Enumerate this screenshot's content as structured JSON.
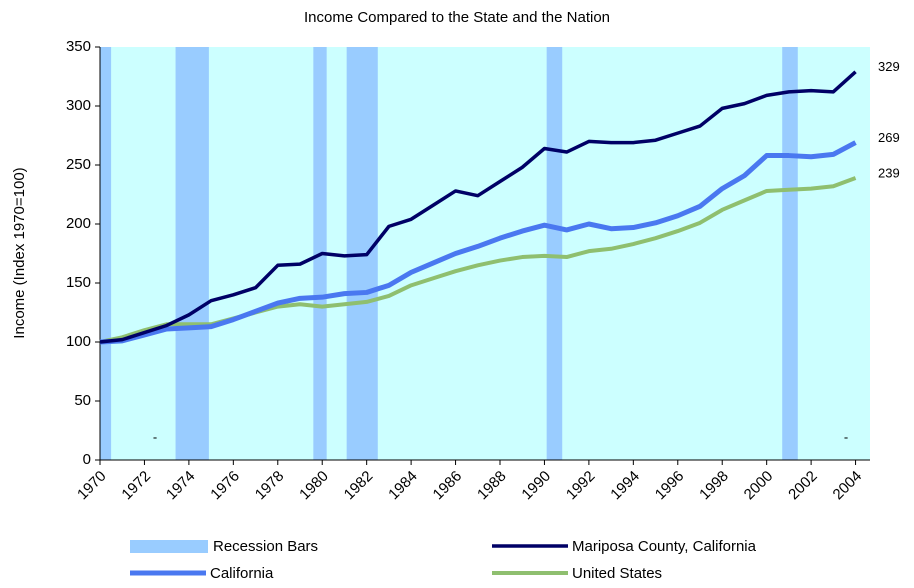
{
  "chart_data": {
    "type": "line",
    "title": "Income Compared to the State and the Nation",
    "y_label": "Income (Index 1970=100)",
    "x": [
      1970,
      1971,
      1972,
      1973,
      1974,
      1975,
      1976,
      1977,
      1978,
      1979,
      1980,
      1981,
      1982,
      1983,
      1984,
      1985,
      1986,
      1987,
      1988,
      1989,
      1990,
      1991,
      1992,
      1993,
      1994,
      1995,
      1996,
      1997,
      1998,
      1999,
      2000,
      2001,
      2002,
      2003,
      2004
    ],
    "series": [
      {
        "name": "Mariposa County, California",
        "color": "#000066",
        "width": 3.5,
        "values": [
          100,
          102,
          108,
          114,
          123,
          135,
          140,
          146,
          165,
          166,
          175,
          173,
          174,
          198,
          204,
          216,
          228,
          224,
          236,
          248,
          264,
          261,
          270,
          269,
          269,
          271,
          277,
          283,
          298,
          302,
          309,
          312,
          313,
          312,
          329
        ]
      },
      {
        "name": "California",
        "color": "#4a78f0",
        "width": 5,
        "values": [
          100,
          101,
          106,
          111,
          112,
          113,
          119,
          126,
          133,
          137,
          138,
          141,
          142,
          148,
          159,
          167,
          175,
          181,
          188,
          194,
          199,
          195,
          200,
          196,
          197,
          201,
          207,
          215,
          230,
          241,
          258,
          258,
          257,
          259,
          269
        ]
      },
      {
        "name": "United States",
        "color": "#8fbf6f",
        "width": 4,
        "values": [
          100,
          104,
          110,
          115,
          115,
          115,
          120,
          125,
          130,
          132,
          130,
          132,
          134,
          139,
          148,
          154,
          160,
          165,
          169,
          172,
          173,
          172,
          177,
          179,
          183,
          188,
          194,
          201,
          212,
          220,
          228,
          229,
          230,
          232,
          239
        ]
      }
    ],
    "recession_name": "Recession Bars",
    "recession_color": "#99ccff",
    "recessions": [
      [
        1970,
        1970.5
      ],
      [
        1973.4,
        1974.9
      ],
      [
        1979.6,
        1980.2
      ],
      [
        1981.1,
        1982.5
      ],
      [
        1990.1,
        1990.8
      ],
      [
        2000.7,
        2001.4
      ]
    ],
    "annotations": [
      "-",
      "-"
    ],
    "xlim": [
      1970,
      2004.65
    ],
    "xticks": [
      1970,
      1972,
      1974,
      1976,
      1978,
      1980,
      1982,
      1984,
      1986,
      1988,
      1990,
      1992,
      1994,
      1996,
      1998,
      2000,
      2002,
      2004
    ],
    "ylim": [
      0,
      350
    ],
    "yticks": [
      0,
      50,
      100,
      150,
      200,
      250,
      300,
      350
    ],
    "plot_background": "#ccffff"
  }
}
